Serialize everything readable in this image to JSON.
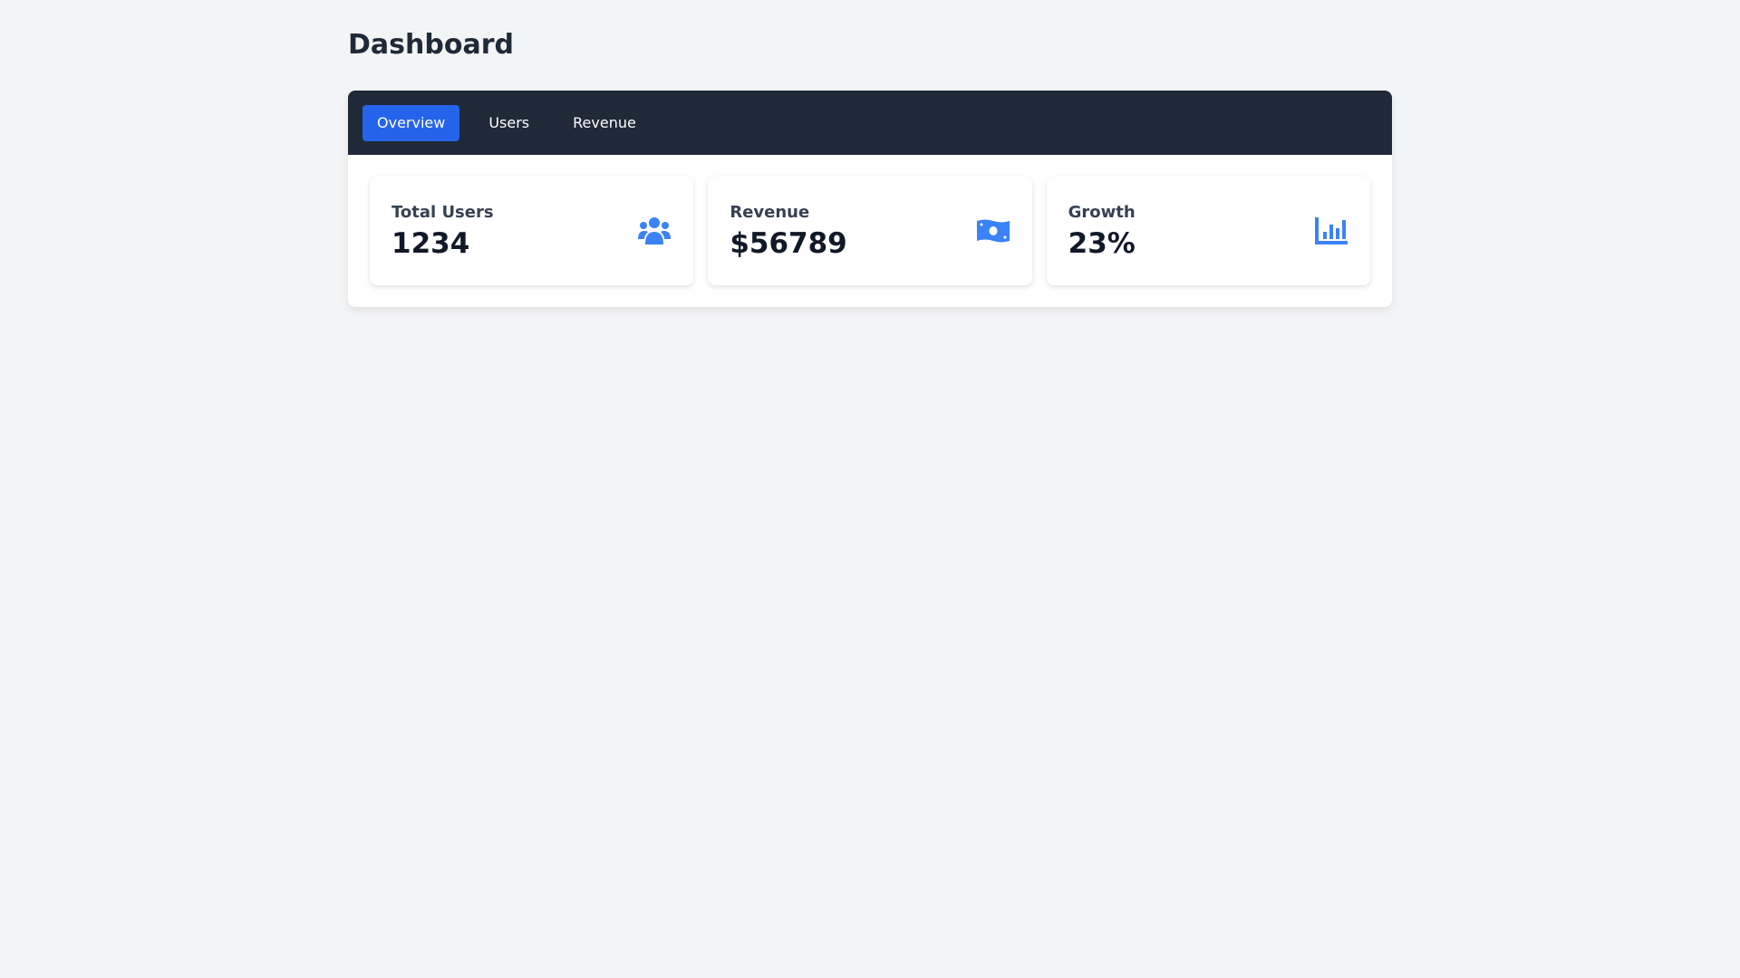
{
  "header": {
    "title": "Dashboard"
  },
  "tabs": [
    {
      "label": "Overview",
      "active": true
    },
    {
      "label": "Users",
      "active": false
    },
    {
      "label": "Revenue",
      "active": false
    }
  ],
  "cards": [
    {
      "label": "Total Users",
      "value": "1234",
      "icon": "users-icon"
    },
    {
      "label": "Revenue",
      "value": "$56789",
      "icon": "money-bill-icon"
    },
    {
      "label": "Growth",
      "value": "23%",
      "icon": "chart-bar-icon"
    }
  ],
  "colors": {
    "accent": "#2563eb",
    "icon": "#3b82f6",
    "nav": "#1f2937"
  }
}
